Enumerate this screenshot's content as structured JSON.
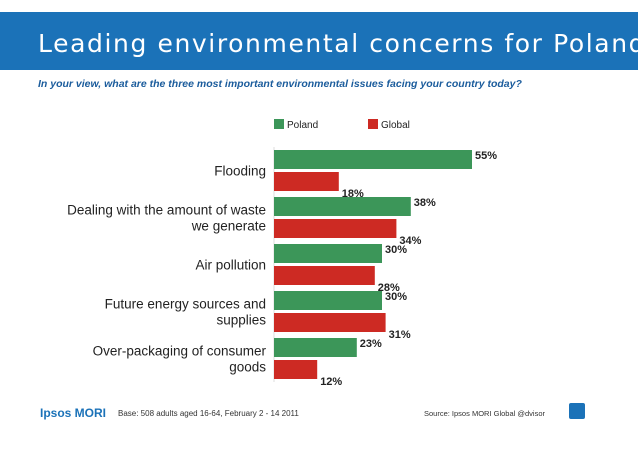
{
  "title": "Leading environmental concerns for Poland",
  "subtitle": "In your view, what are the three most important environmental issues facing your country today?",
  "footer": {
    "logo": "Ipsos MORI",
    "base": "Base: 508 adults aged 16-64, February 2 - 14 2011",
    "source": "Source: Ipsos MORI Global @dvisor"
  },
  "colors": {
    "poland": "#3c9659",
    "global": "#cd2a23",
    "title_bar": "#1b72b8"
  },
  "chart_data": {
    "type": "bar",
    "orientation": "horizontal",
    "categories": [
      [
        "Flooding"
      ],
      [
        "Dealing with the amount of waste",
        "we generate"
      ],
      [
        "Air pollution"
      ],
      [
        "Future energy sources and",
        "supplies"
      ],
      [
        "Over-packaging of consumer",
        "goods"
      ]
    ],
    "series": [
      {
        "name": "Poland",
        "values": [
          55,
          38,
          30,
          30,
          23
        ],
        "labels": [
          "55%",
          "38%",
          "30%",
          "30%",
          "23%"
        ]
      },
      {
        "name": "Global",
        "values": [
          18,
          34,
          28,
          31,
          12
        ],
        "labels": [
          "18%",
          "34%",
          "28%",
          "31%",
          "12%"
        ]
      }
    ],
    "xlim": [
      0,
      60
    ],
    "legend": "top",
    "grid": false
  }
}
